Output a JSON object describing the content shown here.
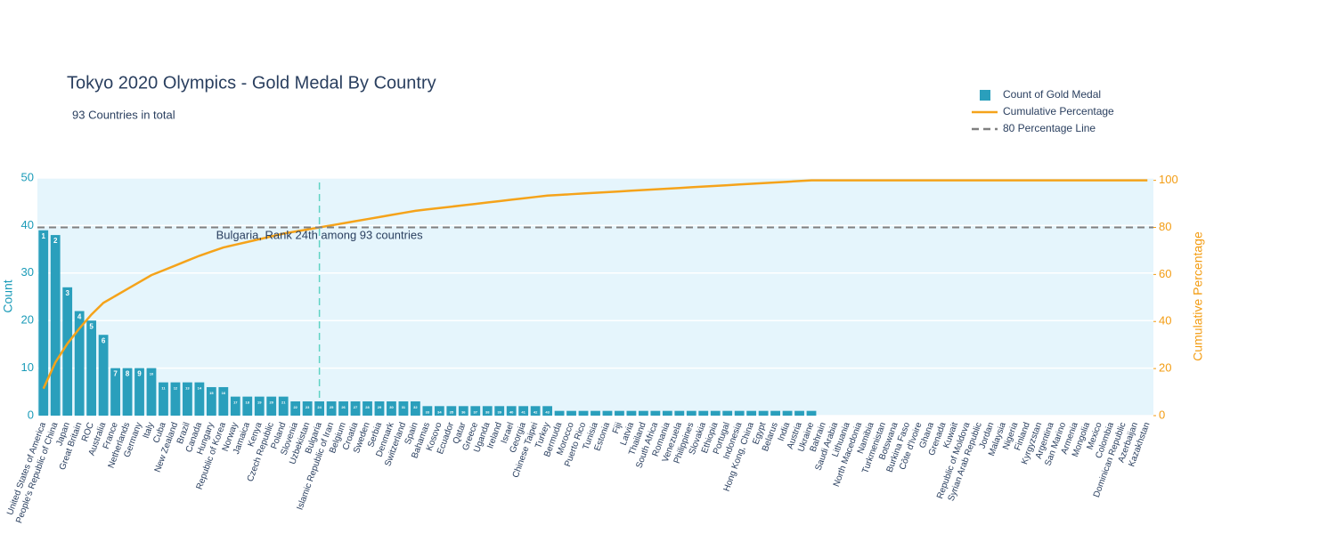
{
  "chart_data": {
    "type": "pareto",
    "title": "Tokyo 2020 Olympics - Gold Medal By Country",
    "subtitle": "93 Countries in total",
    "annotation": "Bulgaria, Rank 24th among 93 countries",
    "marker_category": "Bulgaria",
    "ylabel": "Count",
    "y2label": "Cumulative Percentage",
    "categories": [
      "United States of America",
      "People's Republic of China",
      "Japan",
      "Great Britain",
      "ROC",
      "Australia",
      "France",
      "Netherlands",
      "Germany",
      "Italy",
      "Cuba",
      "New Zealand",
      "Brazil",
      "Canada",
      "Hungary",
      "Republic of Korea",
      "Norway",
      "Jamaica",
      "Kenya",
      "Czech Republic",
      "Poland",
      "Slovenia",
      "Uzbekistan",
      "Bulgaria",
      "Islamic Republic of Iran",
      "Belgium",
      "Croatia",
      "Sweden",
      "Serbia",
      "Denmark",
      "Switzerland",
      "Spain",
      "Bahamas",
      "Kosovo",
      "Ecuador",
      "Qatar",
      "Greece",
      "Uganda",
      "Ireland",
      "Israel",
      "Georgia",
      "Chinese Taipei",
      "Turkey",
      "Bermuda",
      "Morocco",
      "Puerto Rico",
      "Tunisia",
      "Estonia",
      "Fiji",
      "Latvia",
      "Thailand",
      "South Africa",
      "Romania",
      "Venezuela",
      "Philippines",
      "Slovakia",
      "Ethiopia",
      "Portugal",
      "Indonesia",
      "Hong Kong, China",
      "Egypt",
      "Belarus",
      "India",
      "Austria",
      "Ukraine",
      "Bahrain",
      "Saudi Arabia",
      "Lithuania",
      "North Macedonia",
      "Namibia",
      "Turkmenistan",
      "Botswana",
      "Burkina Faso",
      "Côte d'Ivoire",
      "Ghana",
      "Grenada",
      "Kuwait",
      "Republic of Moldova",
      "Syrian Arab Republic",
      "Jordan",
      "Malaysia",
      "Nigeria",
      "Finland",
      "Kyrgyzstan",
      "Argentina",
      "San Marino",
      "Armenia",
      "Mongolia",
      "Mexico",
      "Colombia",
      "Dominican Republic",
      "Azerbaijan",
      "Kazakhstan"
    ],
    "series": [
      {
        "name": "Count of Gold Medal",
        "type": "bar",
        "color": "#2a9fbc",
        "values": [
          39,
          38,
          27,
          22,
          20,
          17,
          10,
          10,
          10,
          10,
          7,
          7,
          7,
          7,
          6,
          6,
          4,
          4,
          4,
          4,
          4,
          3,
          3,
          3,
          3,
          3,
          3,
          3,
          3,
          3,
          3,
          3,
          2,
          2,
          2,
          2,
          2,
          2,
          2,
          2,
          2,
          2,
          2,
          1,
          1,
          1,
          1,
          1,
          1,
          1,
          1,
          1,
          1,
          1,
          1,
          1,
          1,
          1,
          1,
          1,
          1,
          1,
          1,
          1,
          1,
          0,
          0,
          0,
          0,
          0,
          0,
          0,
          0,
          0,
          0,
          0,
          0,
          0,
          0,
          0,
          0,
          0,
          0,
          0,
          0,
          0,
          0,
          0,
          0,
          0,
          0,
          0,
          0
        ],
        "value_labels": [
          1,
          2,
          3,
          4,
          5,
          6,
          7,
          8,
          9,
          10,
          11,
          12,
          13,
          14,
          15,
          16,
          17,
          18,
          19,
          20,
          21,
          22,
          23,
          24,
          25,
          26,
          27,
          28,
          29,
          30,
          31,
          32,
          33,
          34,
          35,
          36,
          37,
          38,
          39,
          40,
          41,
          42,
          43,
          44,
          45,
          46,
          47,
          48,
          49,
          50,
          51,
          52,
          53,
          54,
          55,
          56,
          57,
          58,
          59,
          60,
          61,
          62,
          63,
          64,
          65,
          null,
          null,
          null,
          null,
          null,
          null,
          null,
          null,
          null,
          null,
          null,
          null,
          null,
          null,
          null,
          null,
          null,
          null,
          null,
          null,
          null,
          null,
          null,
          null,
          null,
          null,
          null,
          null
        ]
      },
      {
        "name": "Cumulative Percentage",
        "type": "line",
        "axis": "y2",
        "color": "#f5a31a",
        "values": [
          11.47,
          22.65,
          30.59,
          37.06,
          42.94,
          47.94,
          50.88,
          53.82,
          56.76,
          59.71,
          61.76,
          63.82,
          65.88,
          67.94,
          69.71,
          71.47,
          72.65,
          73.82,
          75,
          76.18,
          77.35,
          78.24,
          79.12,
          80,
          80.88,
          81.76,
          82.65,
          83.53,
          84.41,
          85.29,
          86.18,
          87.06,
          87.65,
          88.24,
          88.82,
          89.41,
          90,
          90.59,
          91.18,
          91.76,
          92.35,
          92.94,
          93.53,
          93.82,
          94.12,
          94.41,
          94.71,
          95,
          95.29,
          95.59,
          95.88,
          96.18,
          96.47,
          96.76,
          97.06,
          97.35,
          97.65,
          97.94,
          98.24,
          98.53,
          98.82,
          99.12,
          99.41,
          99.71,
          100,
          100,
          100,
          100,
          100,
          100,
          100,
          100,
          100,
          100,
          100,
          100,
          100,
          100,
          100,
          100,
          100,
          100,
          100,
          100,
          100,
          100,
          100,
          100,
          100,
          100,
          100,
          100,
          100
        ]
      },
      {
        "name": "80 Percentage Line",
        "type": "hline",
        "axis": "y2",
        "color": "#808080",
        "value": 80
      }
    ],
    "ylim": [
      0,
      50
    ],
    "yticks": [
      0,
      10,
      20,
      30,
      40,
      50
    ],
    "y2lim": [
      0,
      101
    ],
    "y2ticks": [
      0,
      20,
      40,
      60,
      80,
      100
    ],
    "grid": true
  }
}
